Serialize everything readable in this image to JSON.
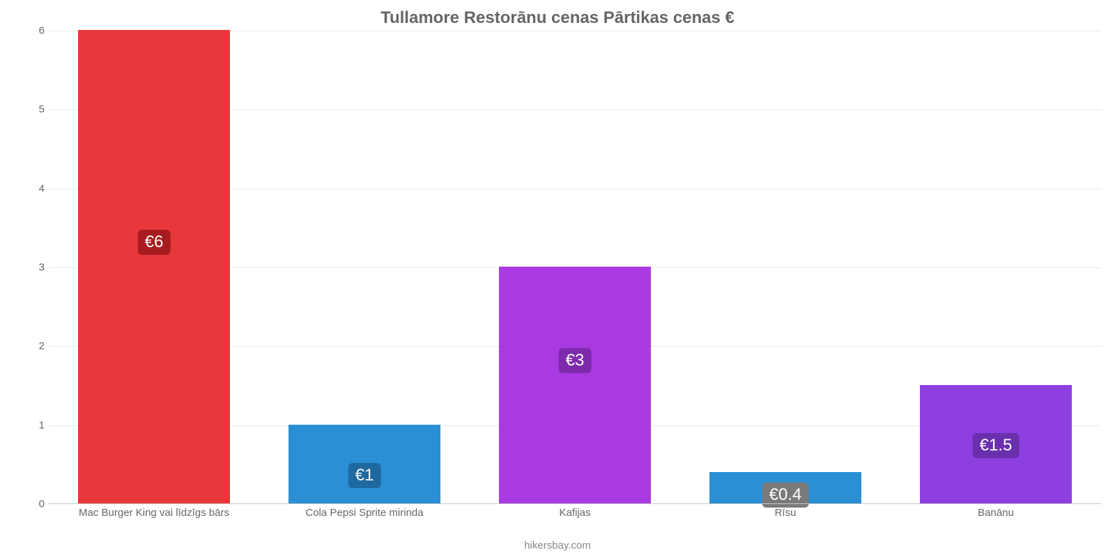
{
  "chart": {
    "type": "bar",
    "title": "Tullamore Restorānu cenas Pārtikas cenas €",
    "title_color": "#666666",
    "title_fontsize": 24,
    "background_color": "#ffffff",
    "grid_color": "#e9e9e9",
    "baseline_color": "#c8c8c8",
    "axis_label_color": "#666666",
    "axis_label_fontsize": 15,
    "value_label_fontsize": 24,
    "value_label_color": "#ffffff",
    "value_label_radius": 6,
    "y_axis": {
      "min": 0,
      "max": 6,
      "ticks": [
        0,
        1,
        2,
        3,
        4,
        5,
        6
      ]
    },
    "bar_width_pct": 72,
    "bars": [
      {
        "category": "Mac Burger King vai līdzīgs bārs",
        "value": 6,
        "value_label": "€6",
        "bar_color": "#e8383b",
        "label_bg": "#a71d1f",
        "label_y_frac": 0.5
      },
      {
        "category": "Cola Pepsi Sprite mirinda",
        "value": 1,
        "value_label": "€1",
        "bar_color": "#2a8fd4",
        "label_bg": "#1e6aa0",
        "label_y_frac": 0.96
      },
      {
        "category": "Kafijas",
        "value": 3,
        "value_label": "€3",
        "bar_color": "#a93ae2",
        "label_bg": "#7e2bab",
        "label_y_frac": 0.5
      },
      {
        "category": "Rīsu",
        "value": 0.4,
        "value_label": "€0.4",
        "bar_color": "#2a8fd4",
        "label_bg": "#7a7a7a",
        "label_y_frac": 1.5
      },
      {
        "category": "Banānu",
        "value": 1.5,
        "value_label": "€1.5",
        "bar_color": "#8d3fe0",
        "label_bg": "#6a2fad",
        "label_y_frac": 0.72
      }
    ],
    "attribution": "hikersbay.com",
    "attribution_color": "#888888",
    "attribution_fontsize": 15
  }
}
